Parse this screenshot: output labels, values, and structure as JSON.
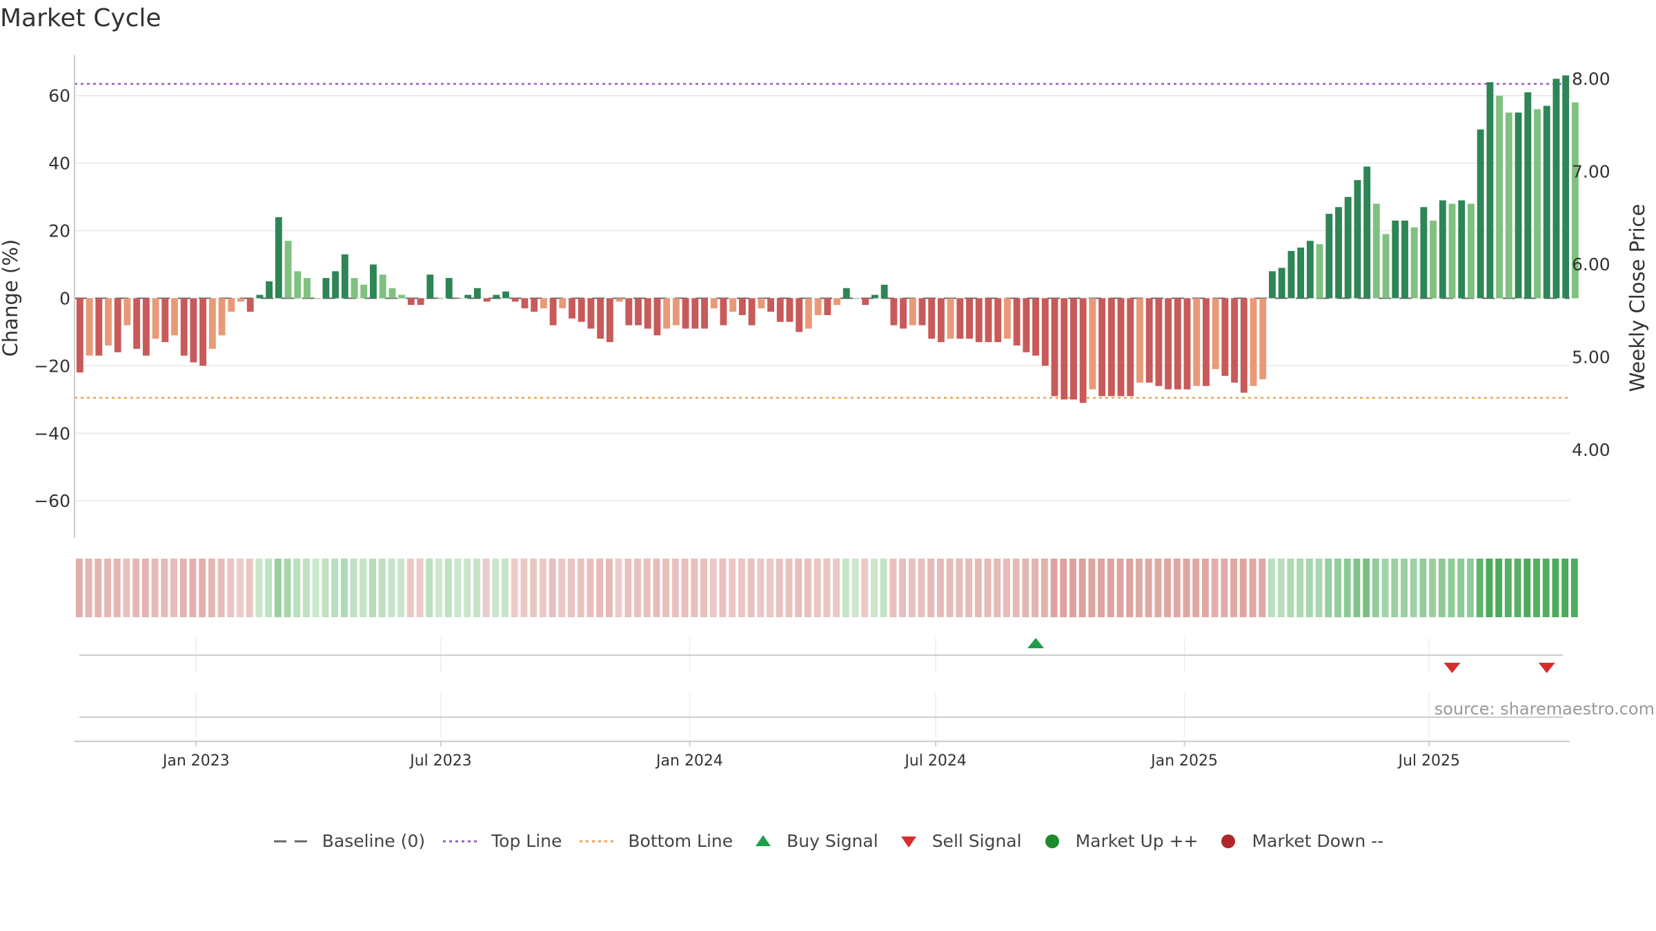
{
  "title": "Market Cycle",
  "source": "source: sharemaestro.com",
  "colors": {
    "bar_dark_green": "#2e8555",
    "bar_light_green": "#80c080",
    "bar_dark_red": "#c85a5a",
    "bar_light_red": "#e89a78",
    "top_line": "#9b59c9",
    "bottom_line": "#f0a050",
    "baseline": "#666666",
    "buy": "#1e9e4a",
    "sell": "#d62d2d",
    "market_up": "#1e8a2e",
    "market_down": "#b0272b"
  },
  "legend": [
    {
      "key": "baseline",
      "label": "Baseline (0)",
      "symbol": "dash"
    },
    {
      "key": "top",
      "label": "Top Line",
      "symbol": "dot-purple"
    },
    {
      "key": "bottom",
      "label": "Bottom Line",
      "symbol": "dot-orange"
    },
    {
      "key": "buy",
      "label": "Buy Signal",
      "symbol": "triangle-up"
    },
    {
      "key": "sell",
      "label": "Sell Signal",
      "symbol": "triangle-down"
    },
    {
      "key": "up",
      "label": "Market Up ++",
      "symbol": "circle-green"
    },
    {
      "key": "down",
      "label": "Market Down --",
      "symbol": "circle-red"
    }
  ],
  "chart_data": {
    "type": "bar",
    "y_left_label": "Change (%)",
    "y_right_label": "Weekly Close Price",
    "ylim": [
      -71,
      72
    ],
    "y_ticks": [
      -60,
      -40,
      -20,
      0,
      20,
      40,
      60
    ],
    "y_tick_labels": [
      "−60",
      "−40",
      "−20",
      "0",
      "20",
      "40",
      "60"
    ],
    "y_right_ticks": [
      4.0,
      5.0,
      6.0,
      7.0,
      8.0
    ],
    "y_right_tick_labels": [
      "4.00",
      "5.00",
      "6.00",
      "7.00",
      "8.00"
    ],
    "top_line": 63.5,
    "bottom_line": -29.5,
    "x_range": [
      "2022-10-03",
      "2025-10-13"
    ],
    "x_ticks": [
      "2023-01-01",
      "2023-07-01",
      "2024-01-01",
      "2024-07-01",
      "2025-01-01",
      "2025-07-01"
    ],
    "x_tick_labels": [
      "Jan 2023",
      "Jul 2023",
      "Jan 2024",
      "Jul 2024",
      "Jan 2025",
      "Jul 2025"
    ],
    "start_week": "2022-10-07",
    "values": [
      -22,
      -17,
      -17,
      -14,
      -16,
      -8,
      -15,
      -17,
      -12,
      -13,
      -11,
      -17,
      -19,
      -20,
      -15,
      -11,
      -4,
      -1,
      -4,
      1,
      5,
      24,
      17,
      8,
      6,
      0,
      6,
      8,
      13,
      6,
      4,
      10,
      7,
      3,
      1,
      -2,
      -2,
      7,
      0,
      6,
      0,
      1,
      3,
      -1,
      1,
      2,
      -1,
      -3,
      -4,
      -3,
      -8,
      -3,
      -6,
      -7,
      -9,
      -12,
      -13,
      -1,
      -8,
      -8,
      -9,
      -11,
      -9,
      -8,
      -9,
      -9,
      -9,
      -3,
      -8,
      -4,
      -5,
      -8,
      -3,
      -4,
      -7,
      -7,
      -10,
      -9,
      -5,
      -5,
      -2,
      3,
      0,
      -2,
      1,
      4,
      -8,
      -9,
      -8,
      -8,
      -12,
      -13,
      -12,
      -12,
      -12,
      -13,
      -13,
      -13,
      -12,
      -14,
      -16,
      -17,
      -20,
      -29,
      -30,
      -30,
      -31,
      -27,
      -29,
      -29,
      -29,
      -29,
      -25,
      -25,
      -26,
      -27,
      -27,
      -27,
      -26,
      -26,
      -21,
      -23,
      -25,
      -28,
      -26,
      -24,
      8,
      9,
      14,
      15,
      17,
      16,
      25,
      27,
      30,
      35,
      39,
      28,
      19,
      23,
      23,
      21,
      27,
      23,
      29,
      28,
      29,
      28,
      50,
      64,
      60,
      55,
      55,
      61,
      56,
      57,
      65,
      66,
      58
    ],
    "signals": [
      {
        "type": "buy",
        "date": "2024-09-13"
      },
      {
        "type": "sell",
        "date": "2025-07-18"
      },
      {
        "type": "sell",
        "date": "2025-09-26"
      }
    ]
  }
}
